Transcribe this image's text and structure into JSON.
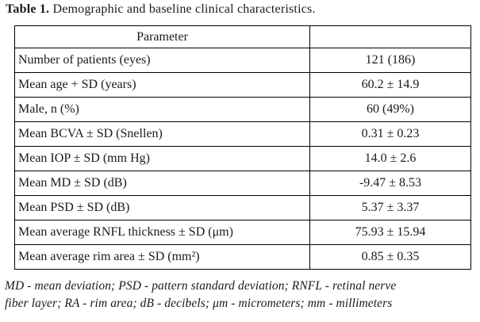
{
  "title": {
    "label": "Table 1.",
    "text": "Demographic and baseline clinical characteristics."
  },
  "table": {
    "header": {
      "parameter": "Parameter",
      "value": ""
    },
    "rows": [
      {
        "parameter": "Number of patients (eyes)",
        "value": "121 (186)"
      },
      {
        "parameter": "Mean age + SD (years)",
        "value": "60.2 ± 14.9"
      },
      {
        "parameter": "Male, n (%)",
        "value": "60 (49%)"
      },
      {
        "parameter": "Mean BCVA ± SD (Snellen)",
        "value": "0.31 ± 0.23"
      },
      {
        "parameter": "Mean IOP ± SD (mm Hg)",
        "value": "14.0 ± 2.6"
      },
      {
        "parameter": "Mean MD ± SD (dB)",
        "value": "-9.47 ± 8.53"
      },
      {
        "parameter": "Mean PSD ± SD (dB)",
        "value": "5.37 ± 3.37"
      },
      {
        "parameter": "Mean average RNFL thickness ± SD (μm)",
        "value": "75.93 ± 15.94"
      },
      {
        "parameter": "Mean average rim area ± SD (mm²)",
        "value": "0.85 ± 0.35"
      }
    ]
  },
  "footnote": {
    "line1": "MD - mean deviation; PSD - pattern standard deviation; RNFL - retinal nerve",
    "line2": "fiber layer; RA - rim area; dB - decibels; μm - micrometers; mm - millimeters"
  },
  "colors": {
    "text": "#1a1a1a",
    "border": "#000000",
    "background": "#ffffff"
  }
}
